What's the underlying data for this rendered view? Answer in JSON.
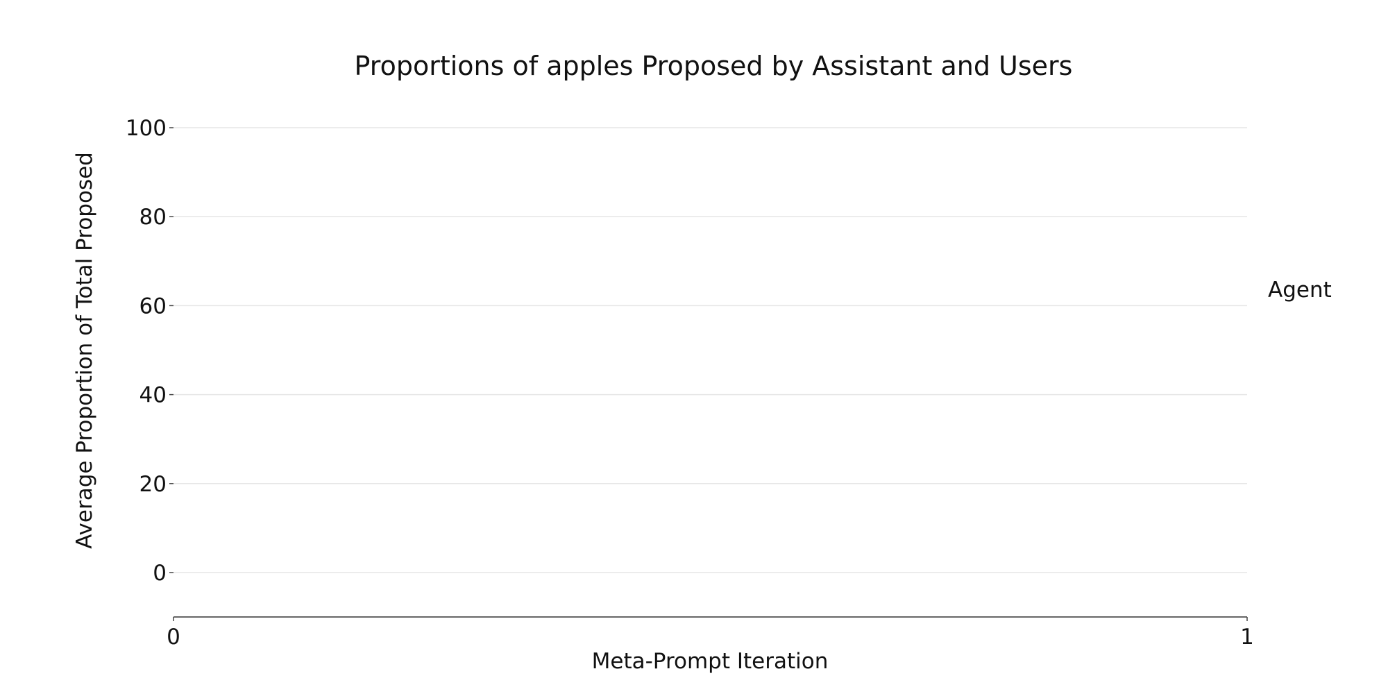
{
  "chart_data": {
    "type": "line",
    "title": "Proportions of apples Proposed by Assistant and Users",
    "xlabel": "Meta-Prompt Iteration",
    "ylabel": "Average Proportion of Total Proposed",
    "xlim": [
      0,
      1
    ],
    "ylim": [
      0,
      100
    ],
    "x_ticks": [
      0,
      1
    ],
    "x_tick_labels": [
      "0",
      "1"
    ],
    "y_ticks": [
      0,
      20,
      40,
      60,
      80,
      100
    ],
    "y_tick_labels": [
      "0",
      "20",
      "40",
      "60",
      "80",
      "100"
    ],
    "grid": true,
    "legend_position": "right",
    "series": [
      {
        "name": "Agent",
        "x": [],
        "values": []
      }
    ]
  }
}
